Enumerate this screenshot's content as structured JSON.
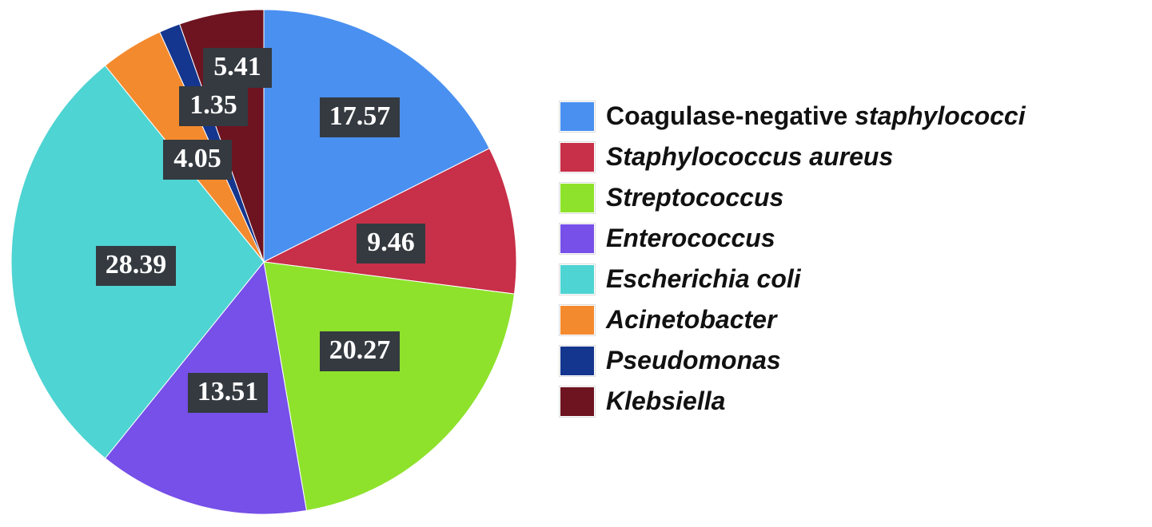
{
  "chart_data": {
    "type": "pie",
    "title": "",
    "start_angle_deg": 0,
    "direction": "clockwise",
    "legend_position": "right",
    "slices": [
      {
        "label_parts": [
          {
            "text": "Coagulase-negative ",
            "italic": false
          },
          {
            "text": "staphylococci",
            "italic": true
          }
        ],
        "value": 17.57,
        "display": "17.57",
        "color": "#4a90f0"
      },
      {
        "label_parts": [
          {
            "text": "Staphylococcus aureus",
            "italic": true
          }
        ],
        "value": 9.46,
        "display": "9.46",
        "color": "#c82f48"
      },
      {
        "label_parts": [
          {
            "text": "Streptococcus",
            "italic": true
          }
        ],
        "value": 20.27,
        "display": "20.27",
        "color": "#8ee22c"
      },
      {
        "label_parts": [
          {
            "text": "Enterococcus",
            "italic": true
          }
        ],
        "value": 13.51,
        "display": "13.51",
        "color": "#7650e8"
      },
      {
        "label_parts": [
          {
            "text": "Escherichia coli",
            "italic": true
          }
        ],
        "value": 28.39,
        "display": "28.39",
        "color": "#4ed4d2"
      },
      {
        "label_parts": [
          {
            "text": "Acinetobacter",
            "italic": true
          }
        ],
        "value": 4.05,
        "display": "4.05",
        "color": "#f48a2e"
      },
      {
        "label_parts": [
          {
            "text": "Pseudomonas",
            "italic": true
          }
        ],
        "value": 1.35,
        "display": "1.35",
        "color": "#14368e"
      },
      {
        "label_parts": [
          {
            "text": "Klebsiella",
            "italic": true
          }
        ],
        "value": 5.41,
        "display": "5.41",
        "color": "#6e1420"
      }
    ]
  }
}
